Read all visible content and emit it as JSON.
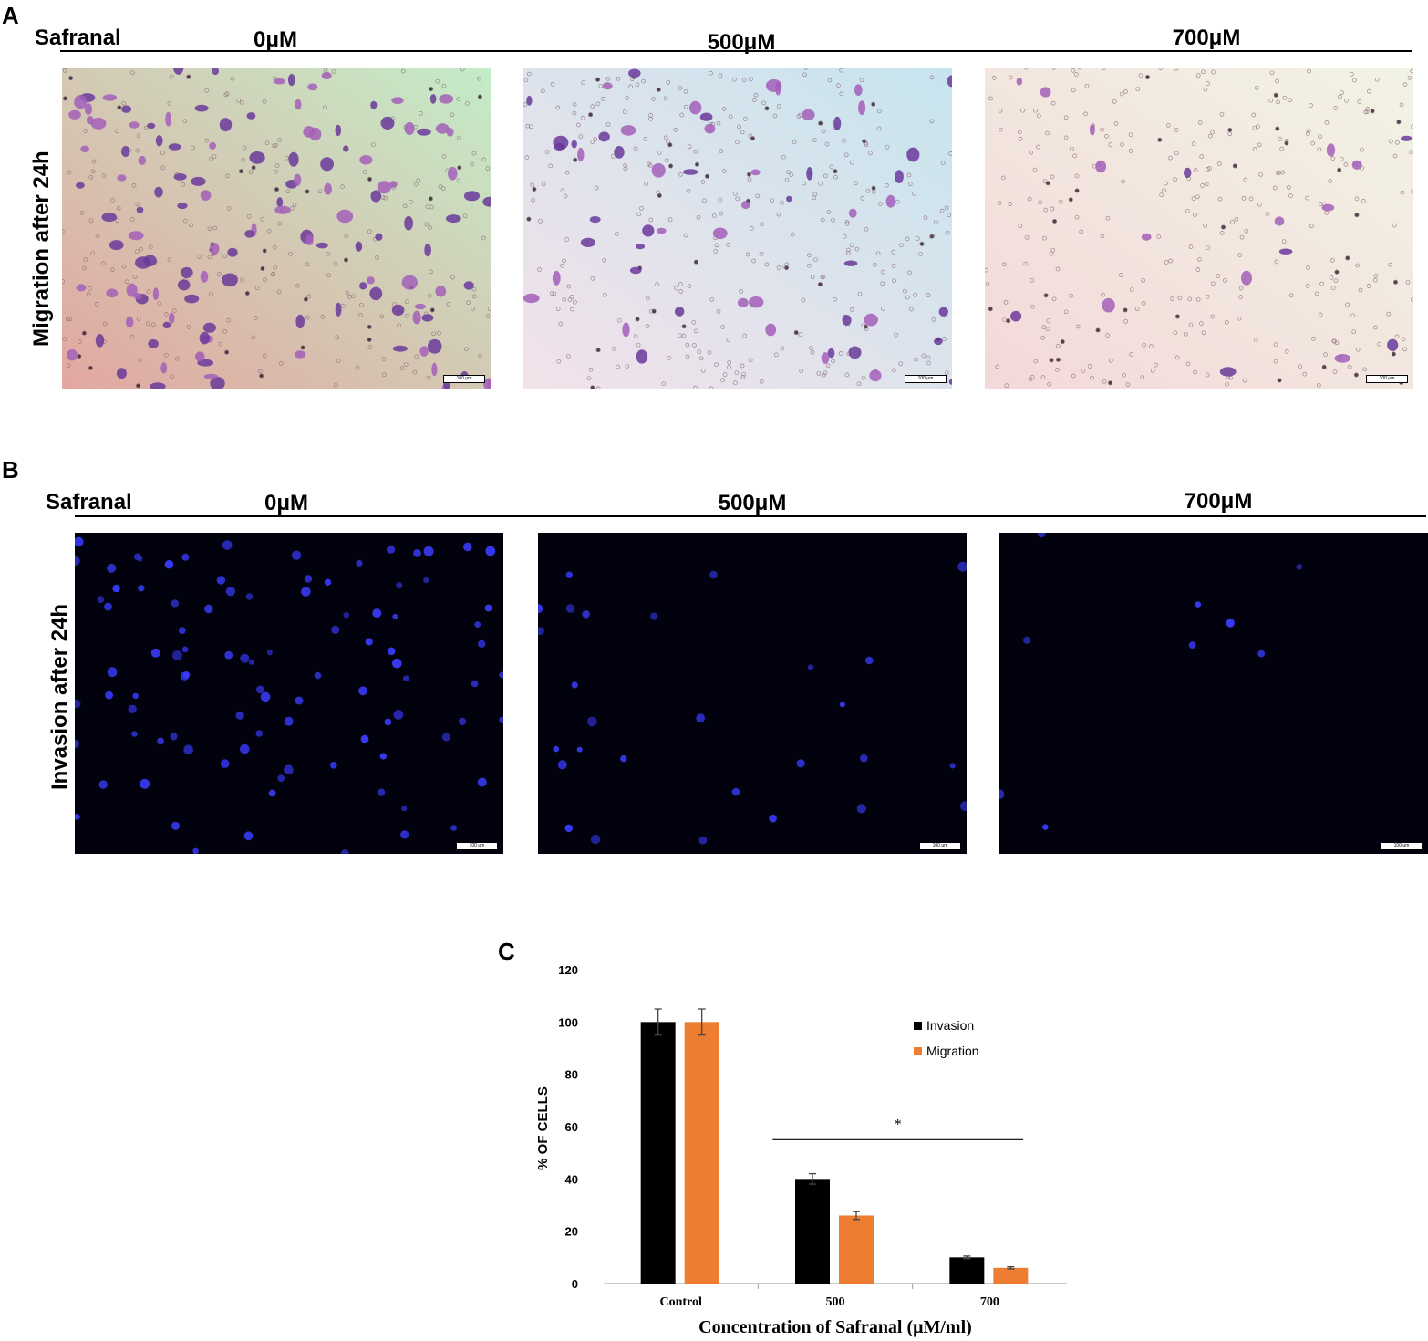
{
  "panel_a": {
    "letter": "A",
    "treatment_label": "Safranal",
    "row_label": "Migration after 24h",
    "concentrations": [
      "0μM",
      "500μM",
      "700μM"
    ],
    "scale_bar": "100 μm"
  },
  "panel_b": {
    "letter": "B",
    "treatment_label": "Safranal",
    "row_label": "Invasion after 24h",
    "concentrations": [
      "0μM",
      "500μM",
      "700μM"
    ],
    "scale_bar": "100 μm"
  },
  "panel_c": {
    "letter": "C"
  },
  "chart_data": {
    "type": "bar",
    "categories": [
      "Control",
      "500",
      "700"
    ],
    "series": [
      {
        "name": "Invasion",
        "values": [
          100,
          40,
          10
        ],
        "errors": [
          5,
          2,
          0.5
        ],
        "color": "#000000"
      },
      {
        "name": "Migration",
        "values": [
          100,
          26,
          6
        ],
        "errors": [
          5,
          1.5,
          0.4
        ],
        "color": "#ED7D31"
      }
    ],
    "xlabel": "Concentration of Safranal (μM/ml)",
    "ylabel": "% OF CELLS",
    "ylim": [
      0,
      120
    ],
    "yticks": [
      0,
      20,
      40,
      60,
      80,
      100,
      120
    ],
    "legend_position": "top-right",
    "grid": false,
    "annotation": {
      "text": "*",
      "spans": [
        "500",
        "700"
      ]
    }
  }
}
